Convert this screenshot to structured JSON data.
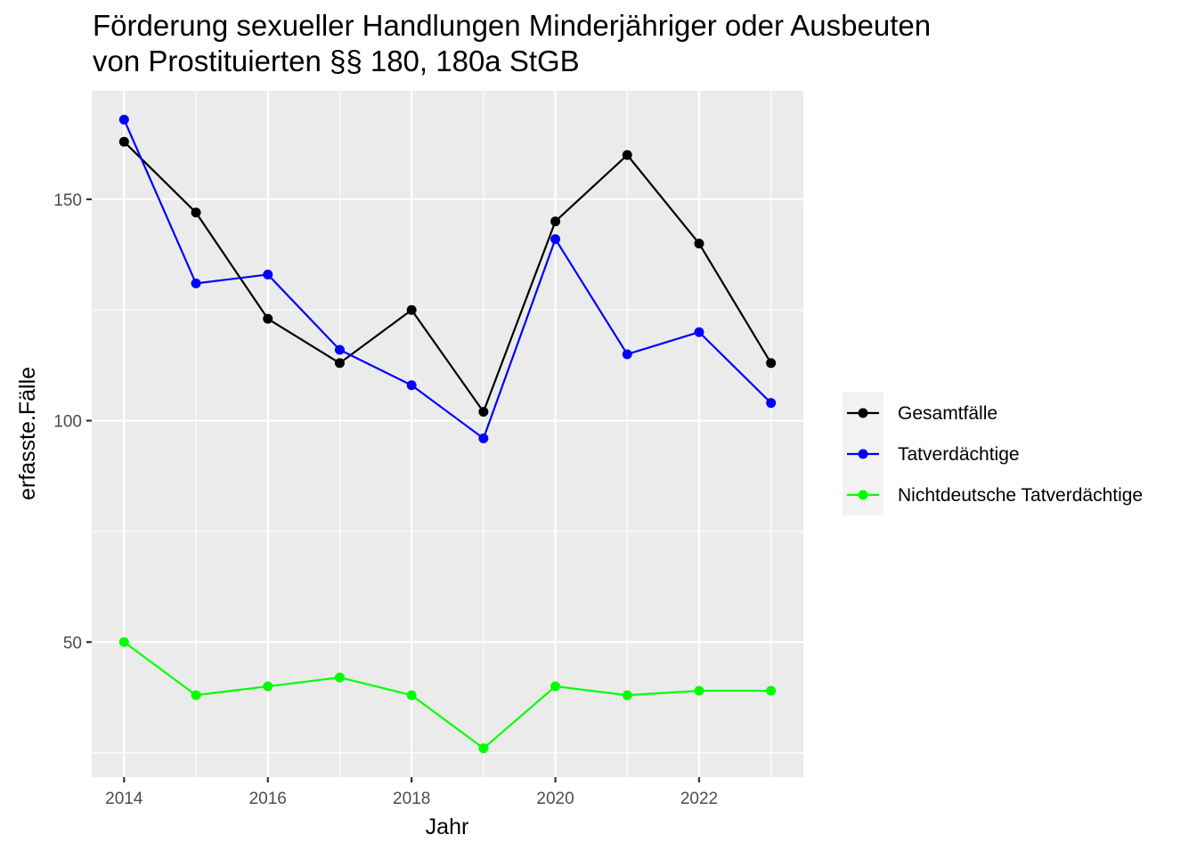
{
  "chart_data": {
    "type": "line",
    "title": "Förderung sexueller Handlungen Minderjähriger oder Ausbeuten",
    "subtitle": "von Prostituierten §§ 180, 180a StGB",
    "xlabel": "Jahr",
    "ylabel": "erfasste.Fälle",
    "x": [
      2014,
      2015,
      2016,
      2017,
      2018,
      2019,
      2020,
      2021,
      2022,
      2023
    ],
    "xlim": [
      2013.55,
      2023.45
    ],
    "ylim": [
      19.5,
      174.5
    ],
    "x_ticks": [
      2014,
      2016,
      2018,
      2020,
      2022
    ],
    "x_tick_labels": [
      "2014",
      "2016",
      "2018",
      "2020",
      "2022"
    ],
    "y_ticks": [
      50,
      100,
      150
    ],
    "y_tick_labels": [
      "50",
      "100",
      "150"
    ],
    "grid": true,
    "legend_position": "right",
    "panel_background": "#ebebeb",
    "grid_color": "#ffffff",
    "series": [
      {
        "name": "Gesamtfälle",
        "color": "#000000",
        "values": [
          163,
          147,
          123,
          113,
          125,
          102,
          145,
          160,
          140,
          113
        ]
      },
      {
        "name": "Tatverdächtige",
        "color": "#0000ff",
        "values": [
          168,
          131,
          133,
          116,
          108,
          96,
          141,
          115,
          120,
          104
        ]
      },
      {
        "name": "Nichtdeutsche Tatverdächtige",
        "color": "#00ff00",
        "values": [
          50,
          38,
          40,
          42,
          38,
          26,
          40,
          38,
          39,
          39
        ]
      }
    ]
  }
}
